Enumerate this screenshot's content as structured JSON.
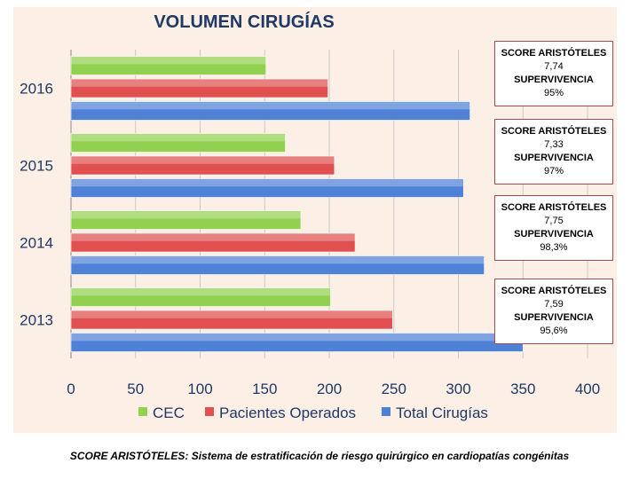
{
  "chart_data": {
    "type": "bar",
    "orientation": "horizontal",
    "title": "VOLUMEN CIRUGÍAS",
    "categories": [
      "2013",
      "2014",
      "2015",
      "2016"
    ],
    "series": [
      {
        "name": "CEC",
        "color": "#92d050",
        "values": [
          201,
          178,
          166,
          151
        ]
      },
      {
        "name": "Pacientes Operados",
        "color": "#e05050",
        "values": [
          249,
          220,
          204,
          199
        ]
      },
      {
        "name": "Total Cirugías",
        "color": "#4f81d6",
        "values": [
          350,
          320,
          304,
          309
        ]
      }
    ],
    "xlim": [
      0,
      400
    ],
    "xticks": [
      0,
      50,
      100,
      150,
      200,
      250,
      300,
      350,
      400
    ],
    "grid": true,
    "legend": "bottom",
    "annotations": [
      {
        "year": "2016",
        "label1": "SCORE ARISTÓTELES",
        "score": "7,74",
        "label2": "SUPERVIVENCIA",
        "survival": "95%"
      },
      {
        "year": "2015",
        "label1": "SCORE ARISTÓTELES",
        "score": "7,33",
        "label2": "SUPERVIVENCIA",
        "survival": "97%"
      },
      {
        "year": "2014",
        "label1": "SCORE ARISTÓTELES",
        "score": "7,75",
        "label2": "SUPERVIVENCIA",
        "survival": "98,3%"
      },
      {
        "year": "2013",
        "label1": "SCORE ARISTÓTELES",
        "score": "7,59",
        "label2": "SUPERVIVENCIA",
        "survival": "95,6%"
      }
    ]
  },
  "footnote": "SCORE ARISTÓTELES: Sistema de estratificación de riesgo quirúrgico en cardiopatías congénitas"
}
